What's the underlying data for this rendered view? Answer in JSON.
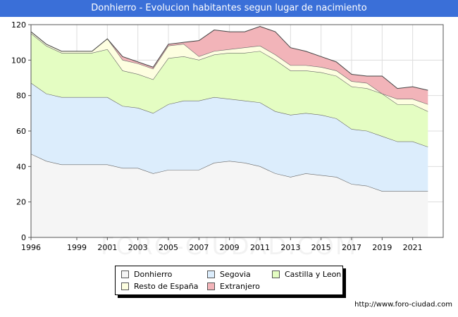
{
  "title": "Donhierro - Evolucion habitantes segun lugar de nacimiento",
  "watermark": "FORO-CIUDAD.COM",
  "source": "http://www.foro-ciudad.com",
  "colors": {
    "title_bg": "#3a6fd8",
    "donhierro": "#f5f5f5",
    "segovia": "#dcedfc",
    "castilla": "#e4fdc2",
    "resto": "#fdfee0",
    "extranjero": "#f2b4b9"
  },
  "chart_data": {
    "type": "area",
    "stacked": true,
    "title": "Donhierro - Evolucion habitantes segun lugar de nacimiento",
    "xlabel": "",
    "ylabel": "",
    "xlim": [
      1996,
      2023
    ],
    "ylim": [
      0,
      120
    ],
    "x_ticks": [
      "1996",
      "1999",
      "2001",
      "2003",
      "2005",
      "2007",
      "2009",
      "2011",
      "2013",
      "2015",
      "2017",
      "2019",
      "2021"
    ],
    "x_tick_values": [
      1996,
      1999,
      2001,
      2003,
      2005,
      2007,
      2009,
      2011,
      2013,
      2015,
      2017,
      2019,
      2021
    ],
    "y_ticks": [
      "0",
      "20",
      "40",
      "60",
      "80",
      "100",
      "120"
    ],
    "y_tick_values": [
      0,
      20,
      40,
      60,
      80,
      100,
      120
    ],
    "grid": true,
    "legend_position": "bottom-center",
    "x": [
      1996,
      1997,
      1998,
      1999,
      2000,
      2001,
      2002,
      2003,
      2004,
      2005,
      2006,
      2007,
      2008,
      2009,
      2010,
      2011,
      2012,
      2013,
      2014,
      2015,
      2016,
      2017,
      2018,
      2019,
      2020,
      2021,
      2022
    ],
    "series": [
      {
        "name": "Donhierro",
        "key": "donhierro",
        "values": [
          47,
          43,
          41,
          41,
          41,
          41,
          39,
          39,
          36,
          38,
          38,
          38,
          42,
          43,
          42,
          40,
          36,
          34,
          36,
          35,
          34,
          30,
          29,
          26,
          26,
          26,
          26
        ]
      },
      {
        "name": "Segovia",
        "key": "segovia",
        "values": [
          40,
          38,
          38,
          38,
          38,
          38,
          35,
          34,
          34,
          37,
          39,
          39,
          37,
          35,
          35,
          36,
          35,
          35,
          34,
          34,
          33,
          31,
          31,
          31,
          28,
          28,
          25
        ]
      },
      {
        "name": "Castilla y Leon",
        "key": "castilla",
        "values": [
          28,
          27,
          25,
          25,
          25,
          27,
          20,
          19,
          19,
          26,
          25,
          23,
          24,
          26,
          27,
          29,
          29,
          25,
          24,
          24,
          24,
          24,
          24,
          24,
          21,
          21,
          20
        ]
      },
      {
        "name": "Resto de España",
        "key": "resto",
        "values": [
          1,
          1,
          1,
          1,
          1,
          6,
          6,
          6,
          6,
          7,
          7,
          2,
          2,
          2,
          3,
          3,
          3,
          3,
          3,
          3,
          3,
          3,
          3,
          0,
          3,
          3,
          4
        ]
      },
      {
        "name": "Extranjero",
        "key": "extranjero",
        "values": [
          0,
          0,
          0,
          0,
          0,
          0,
          2,
          1,
          1,
          1,
          1,
          9,
          12,
          10,
          9,
          11,
          13,
          10,
          8,
          6,
          5,
          4,
          4,
          10,
          6,
          7,
          8
        ]
      }
    ]
  }
}
